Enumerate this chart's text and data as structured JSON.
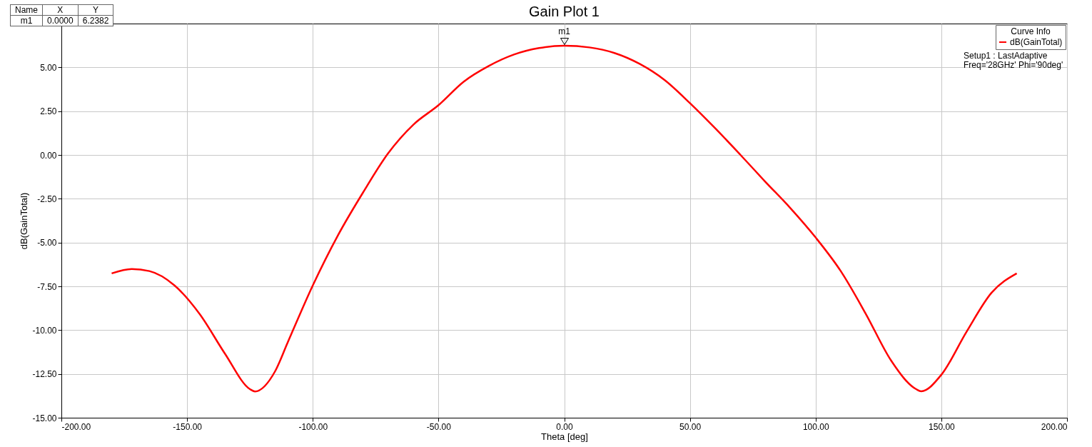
{
  "chart_data": {
    "type": "line",
    "title": "Gain Plot 1",
    "xlabel": "Theta [deg]",
    "ylabel": "dB(GainTotal)",
    "legend_title": "Curve Info",
    "x": [
      -180,
      -172,
      -165,
      -155,
      -145,
      -135,
      -125,
      -123,
      -115,
      -110,
      -100,
      -90,
      -80,
      -70,
      -60,
      -50,
      -40,
      -30,
      -20,
      -10,
      0,
      10,
      20,
      30,
      40,
      50,
      60,
      70,
      80,
      90,
      100,
      110,
      120,
      130,
      140,
      142,
      150,
      160,
      170,
      180
    ],
    "series": [
      {
        "name": "dB(GainTotal)",
        "color": "#ff0000",
        "values": [
          -6.76,
          -6.51,
          -6.63,
          -7.45,
          -9.08,
          -11.33,
          -13.37,
          -13.5,
          -12.35,
          -10.71,
          -7.45,
          -4.59,
          -2.14,
          0.1,
          1.73,
          2.84,
          4.18,
          5.08,
          5.73,
          6.1,
          6.2382,
          6.14,
          5.82,
          5.2,
          4.27,
          2.96,
          1.53,
          0.02,
          -1.53,
          -3.04,
          -4.71,
          -6.63,
          -9.08,
          -11.73,
          -13.37,
          -13.49,
          -12.55,
          -10.1,
          -7.86,
          -6.76
        ]
      }
    ],
    "xlim": [
      -200,
      200
    ],
    "xticks": [
      {
        "value": -200,
        "label": "-200.00"
      },
      {
        "value": -150,
        "label": "-150.00"
      },
      {
        "value": -100,
        "label": "-100.00"
      },
      {
        "value": -50,
        "label": "-50.00"
      },
      {
        "value": 0,
        "label": "0.00"
      },
      {
        "value": 50,
        "label": "50.00"
      },
      {
        "value": 100,
        "label": "100.00"
      },
      {
        "value": 150,
        "label": "150.00"
      },
      {
        "value": 200,
        "label": "200.00"
      }
    ],
    "ylim": [
      -15,
      7.5
    ],
    "yticks": [
      {
        "value": -15,
        "label": "-15.00"
      },
      {
        "value": -12.5,
        "label": "-12.50"
      },
      {
        "value": -10,
        "label": "-10.00"
      },
      {
        "value": -7.5,
        "label": "-7.50"
      },
      {
        "value": -5,
        "label": "-5.00"
      },
      {
        "value": -2.5,
        "label": "-2.50"
      },
      {
        "value": 0,
        "label": "0.00"
      },
      {
        "value": 2.5,
        "label": "2.50"
      },
      {
        "value": 5,
        "label": "5.00"
      }
    ],
    "grid": true,
    "legend": "top right",
    "marker": "none",
    "line_style": "solid",
    "annotations": [
      {
        "text": "m1",
        "x": 0,
        "y": 6.2382
      },
      "Name",
      "X",
      "Y",
      "m1",
      "0.0000",
      "6.2382",
      "Setup1 : LastAdaptive",
      "Freq='28GHz' Phi='90deg'"
    ]
  }
}
